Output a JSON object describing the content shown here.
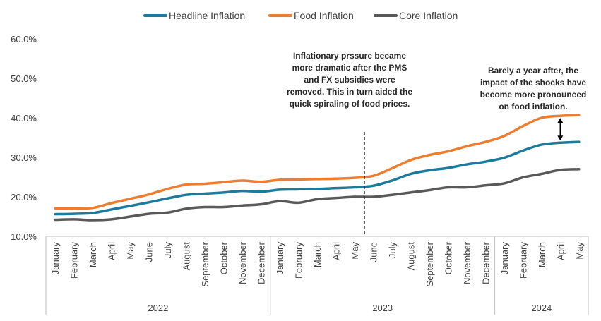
{
  "chart_data": {
    "type": "line",
    "title": "",
    "ylabel": "",
    "xlabel": "",
    "ylim": [
      10,
      60
    ],
    "yticks": [
      "10.0%",
      "20.0%",
      "30.0%",
      "40.0%",
      "50.0%",
      "60.0%"
    ],
    "ytick_values": [
      10,
      20,
      30,
      40,
      50,
      60
    ],
    "categories": [
      "January",
      "February",
      "March",
      "April",
      "May",
      "June",
      "July",
      "August",
      "September",
      "October",
      "November",
      "December",
      "January",
      "February",
      "March",
      "April",
      "May",
      "June",
      "July",
      "August",
      "September",
      "October",
      "November",
      "December",
      "January",
      "February",
      "March",
      "April",
      "May"
    ],
    "years": [
      {
        "label": "2022",
        "count": 12
      },
      {
        "label": "2023",
        "count": 12
      },
      {
        "label": "2024",
        "count": 5
      }
    ],
    "series": [
      {
        "name": "Headline Inflation",
        "color": "#1d7a9c",
        "values": [
          15.6,
          15.7,
          15.9,
          16.8,
          17.7,
          18.6,
          19.6,
          20.5,
          20.8,
          21.1,
          21.5,
          21.3,
          21.8,
          21.9,
          22.0,
          22.2,
          22.4,
          22.8,
          24.1,
          25.8,
          26.7,
          27.3,
          28.2,
          28.9,
          29.9,
          31.7,
          33.2,
          33.7,
          33.9
        ]
      },
      {
        "name": "Food Inflation",
        "color": "#ed7d31",
        "values": [
          17.1,
          17.1,
          17.2,
          18.4,
          19.5,
          20.6,
          22.0,
          23.1,
          23.3,
          23.7,
          24.1,
          23.8,
          24.3,
          24.4,
          24.5,
          24.6,
          24.8,
          25.3,
          27.2,
          29.3,
          30.6,
          31.5,
          32.8,
          33.9,
          35.4,
          37.9,
          40.0,
          40.5,
          40.7
        ]
      },
      {
        "name": "Core Inflation",
        "color": "#595959",
        "values": [
          14.2,
          14.3,
          14.1,
          14.3,
          15.0,
          15.7,
          16.0,
          17.0,
          17.4,
          17.4,
          17.8,
          18.1,
          18.9,
          18.5,
          19.4,
          19.7,
          20.0,
          20.0,
          20.5,
          21.1,
          21.7,
          22.4,
          22.4,
          22.9,
          23.4,
          24.9,
          25.8,
          26.8,
          27.0
        ]
      }
    ],
    "annotations": [
      {
        "lines": [
          "Inflationary prssure became",
          "more dramatic after the PMS",
          "and FX subsidies were",
          "removed. This in turn aided the",
          "quick spiraling of food prices."
        ],
        "anchor_category_index": 17
      },
      {
        "lines": [
          "Barely a year after, the",
          "impact of the shocks have",
          "become more pronounced",
          "on food inflation."
        ],
        "anchor_category_index": 27
      }
    ],
    "legend_position": "top"
  }
}
